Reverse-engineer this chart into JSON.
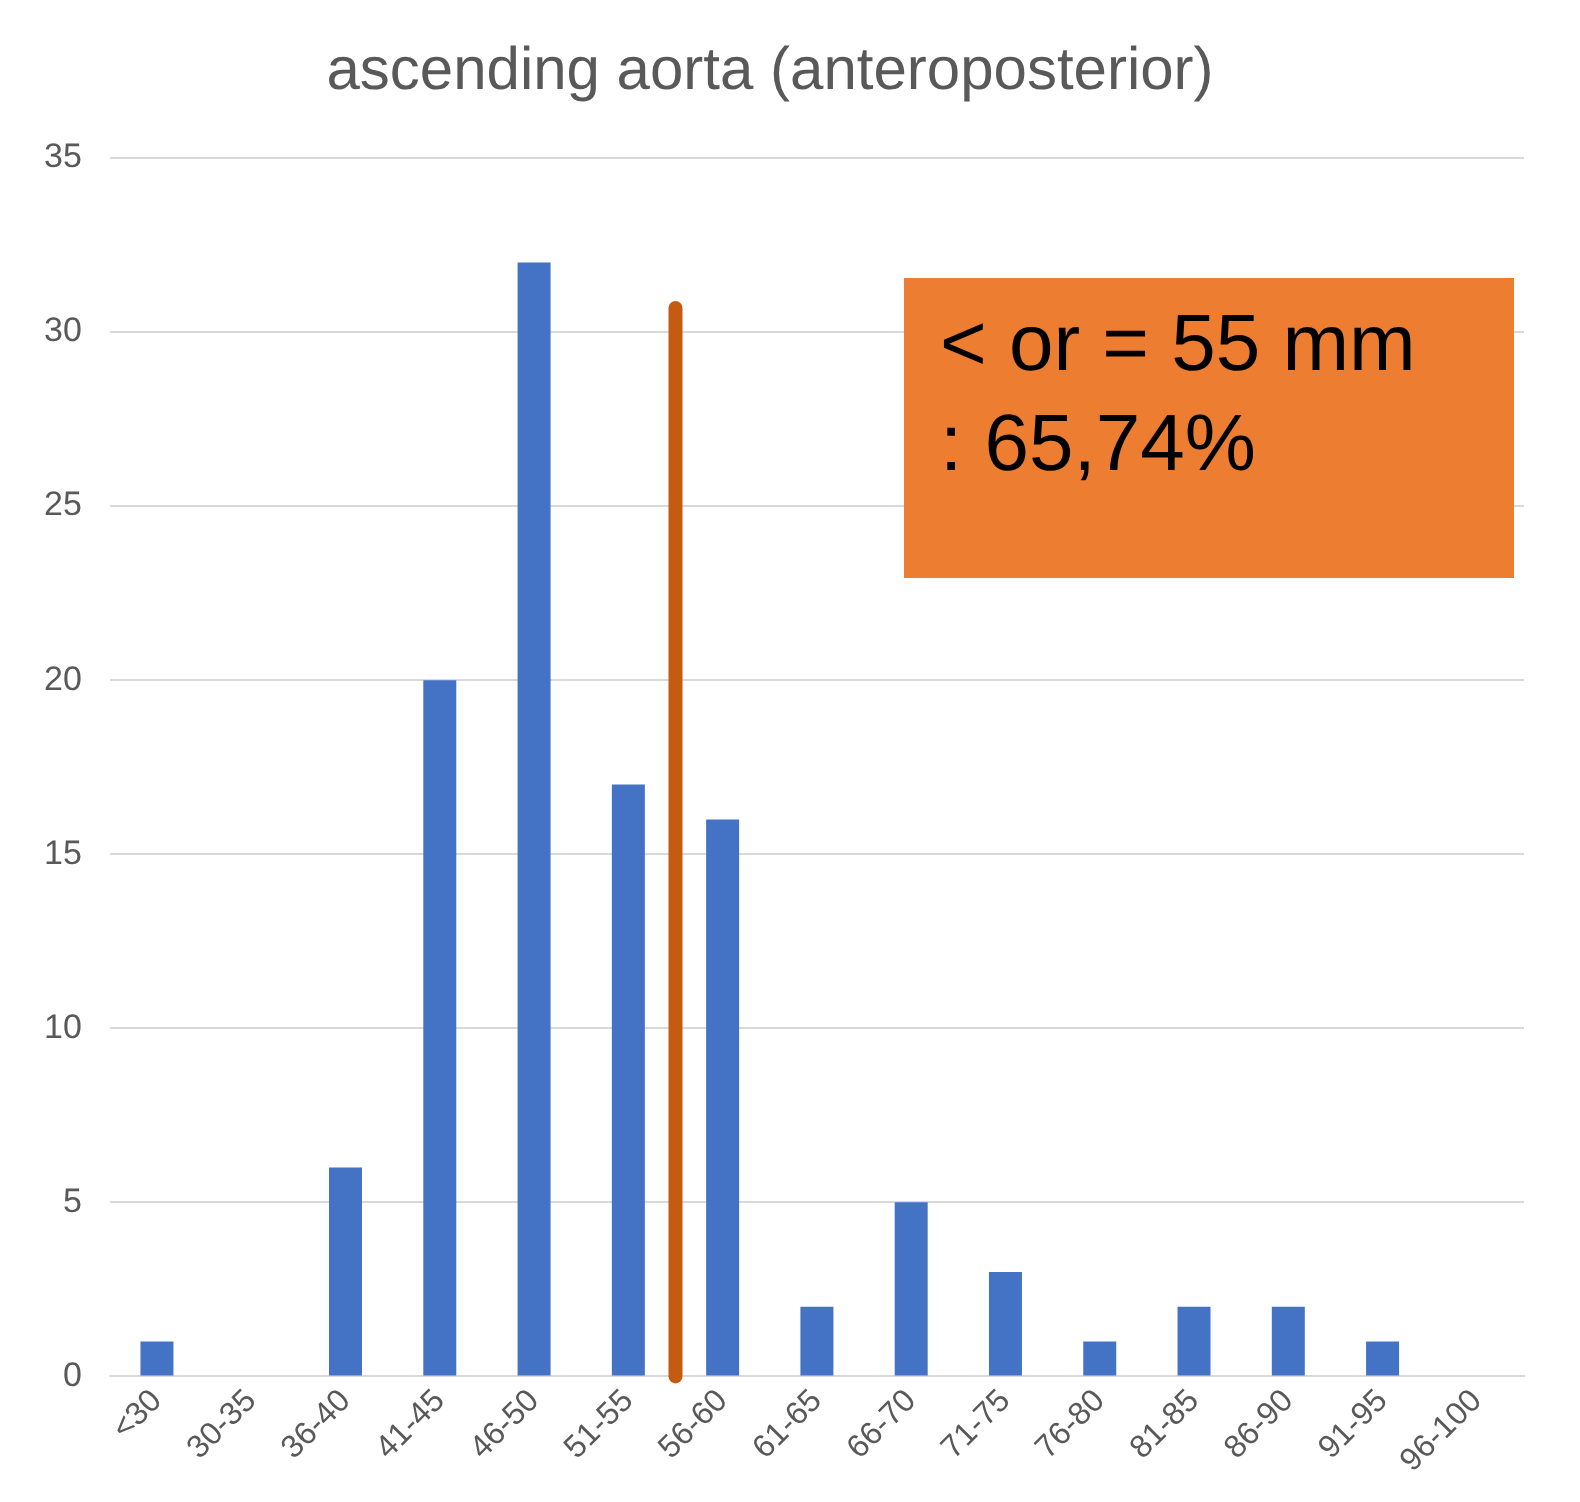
{
  "chart_data": {
    "type": "bar",
    "title": "ascending aorta (anteroposterior)",
    "categories": [
      "<30",
      "30-35",
      "36-40",
      "41-45",
      "46-50",
      "51-55",
      "56-60",
      "61-65",
      "66-70",
      "71-75",
      "76-80",
      "81-85",
      "86-90",
      "91-95",
      "96-100"
    ],
    "values": [
      1,
      0,
      6,
      20,
      32,
      17,
      16,
      2,
      5,
      3,
      1,
      2,
      2,
      1,
      0
    ],
    "color": "#4472c4",
    "ylim": [
      0,
      35
    ],
    "yticks": [
      0,
      5,
      10,
      15,
      20,
      25,
      30,
      35
    ],
    "grid": "y",
    "legend": false,
    "ref_lines": [
      {
        "axis": "x",
        "value": "51-55",
        "color": "#c55a11"
      }
    ],
    "annotations": [
      "< or = 55 mm : 65,74%"
    ]
  }
}
